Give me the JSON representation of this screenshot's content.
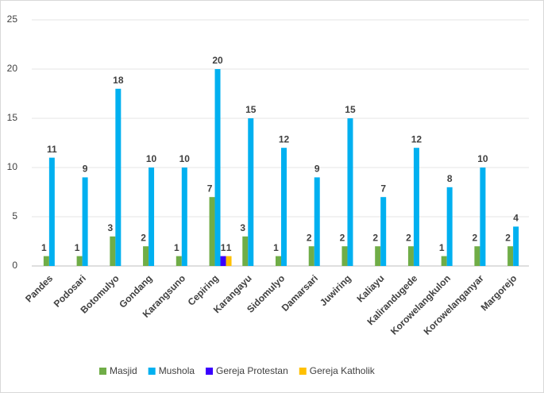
{
  "chart_data": {
    "type": "bar",
    "categories": [
      "Pandes",
      "Podosari",
      "Botomulyo",
      "Gondang",
      "Karangsuno",
      "Cepiring",
      "Karangayu",
      "Sidomulyo",
      "Damarsari",
      "Juwiring",
      "Kaliayu",
      "Kalirandugede",
      "Korowelangkulon",
      "Korowelanganyar",
      "Margorejo"
    ],
    "series": [
      {
        "name": "Masjid",
        "color": "#70ad47",
        "values": [
          1,
          1,
          3,
          2,
          1,
          7,
          3,
          1,
          2,
          2,
          2,
          2,
          1,
          2,
          2
        ]
      },
      {
        "name": "Mushola",
        "color": "#00b0f0",
        "values": [
          11,
          9,
          18,
          10,
          10,
          20,
          15,
          12,
          9,
          15,
          7,
          12,
          8,
          10,
          4
        ]
      },
      {
        "name": "Gereja Protestan",
        "color": "#3a00ff",
        "values": [
          0,
          0,
          0,
          0,
          0,
          1,
          0,
          0,
          0,
          0,
          0,
          0,
          0,
          0,
          0
        ]
      },
      {
        "name": "Gereja Katholik",
        "color": "#ffc000",
        "values": [
          0,
          0,
          0,
          0,
          0,
          1,
          0,
          0,
          0,
          0,
          0,
          0,
          0,
          0,
          0
        ]
      }
    ],
    "ylim": [
      0,
      25
    ],
    "yticks": [
      0,
      5,
      10,
      15,
      20,
      25
    ],
    "grid": true,
    "legend": "bottom"
  }
}
